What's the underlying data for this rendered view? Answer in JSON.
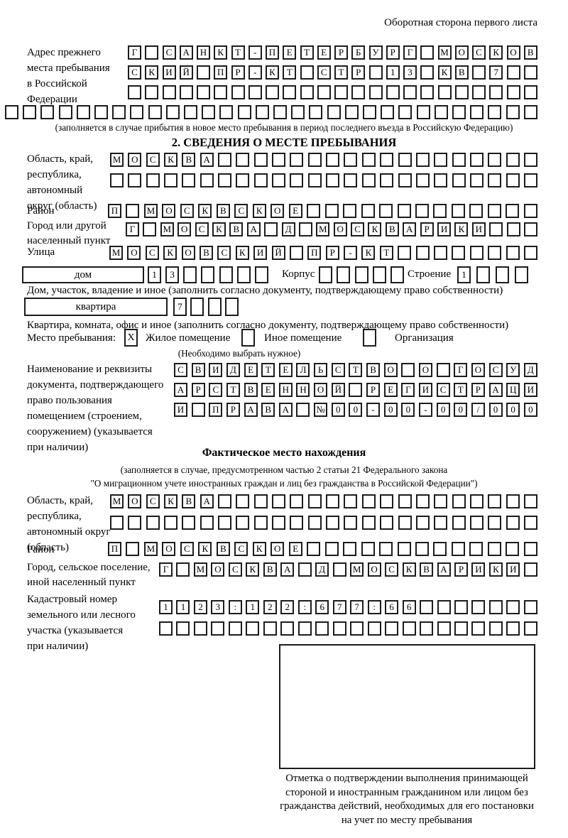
{
  "page": {
    "back_note": "Оборотная сторона первого листа"
  },
  "prev_address": {
    "label_lines": [
      "Адрес прежнего",
      "места пребывания",
      "в Российской",
      "Федерации"
    ],
    "rows": [
      {
        "text": "Г САНКТ-ПЕТЕРБУРГ МОСКОВ",
        "len": 24
      },
      {
        "text": "СКИЙ ПР-КТ СТР 13 КВ 7",
        "len": 24
      },
      {
        "text": "",
        "len": 24
      },
      {
        "text": "",
        "len": 30
      }
    ],
    "note": "(заполняется в случае прибытия в новое место пребывания в период последнего въезда в Российскую Федерацию)"
  },
  "section2": {
    "title": "2. СВЕДЕНИЯ О МЕСТЕ ПРЕБЫВАНИЯ",
    "oblast": {
      "label_lines": [
        "Область, край,",
        "республика,",
        "автономный",
        "округ (область)"
      ],
      "rows": [
        {
          "text": "МОСКВА",
          "len": 24
        },
        {
          "text": "",
          "len": 24
        }
      ]
    },
    "raion": {
      "label": "Район",
      "row": {
        "text": "П МОСКВСКОЕ",
        "len": 24
      }
    },
    "gorod": {
      "label_lines": [
        "Город или другой",
        "населенный пункт"
      ],
      "row": {
        "text": "Г МОСКВА Д МОСКВАРИКИ",
        "len": 24
      }
    },
    "ulitsa": {
      "label": "Улица",
      "row": {
        "text": "МОСКОВСКИЙ ПР-КТ",
        "len": 24
      }
    },
    "dom": {
      "box_label": "дом",
      "cells": {
        "text": "13",
        "len": 7
      },
      "korpus_label": "Корпус",
      "korpus_cells": {
        "text": "",
        "len": 5
      },
      "stroenie_label": "Строение",
      "stroenie_cells": {
        "text": "1",
        "len": 4
      },
      "note": "Дом, участок, владение и иное (заполнить согласно документу, подтверждающему право собственности)"
    },
    "kvartira": {
      "box_label": "квартира",
      "cells": {
        "text": "7",
        "len": 4
      },
      "note": "Квартира, комната, офис и иное (заполнить согласно документу, подтверждающему право собственности)"
    },
    "mesto": {
      "label": "Место пребывания:",
      "options": [
        {
          "label": "Жилое помещение",
          "checked": "X"
        },
        {
          "label": "Иное помещение",
          "checked": ""
        },
        {
          "label": "Организация",
          "checked": ""
        }
      ],
      "note": "(Необходимо выбрать нужное)"
    },
    "doc": {
      "label_lines": [
        "Наименование и реквизиты",
        "документа, подтверждающего",
        "право пользования",
        "помещением (строением,",
        "сооружением) (указывается",
        "при наличии)"
      ],
      "rows": [
        {
          "text": "СВИДЕТЕЛЬСТВО О ГОСУД",
          "len": 21
        },
        {
          "text": "АРСТВЕННОЙ РЕГИСТРАЦИ",
          "len": 21
        },
        {
          "text": "И ПРАВА №00-00-00/000",
          "len": 21
        }
      ]
    }
  },
  "fact": {
    "title": "Фактическое место нахождения",
    "note_lines": [
      "(заполняется в случае, предусмотренном частью 2 статьи 21 Федерального закона",
      "\"О миграционном учете иностранных граждан и лиц без гражданства в Российской Федерации\")"
    ],
    "oblast": {
      "label_lines": [
        "Область, край,",
        "республика,",
        "автономный округ",
        "(область)"
      ],
      "rows": [
        {
          "text": "МОСКВА",
          "len": 24
        },
        {
          "text": "",
          "len": 24
        }
      ]
    },
    "raion": {
      "label": "Район",
      "row": {
        "text": "П МОСКВСКОЕ",
        "len": 24
      }
    },
    "gorod": {
      "label_lines": [
        "Город, сельское поселение,",
        "иной населенный пункт"
      ],
      "row": {
        "text": "Г МОСКВА Д МОСКВАРИКИ",
        "len": 22
      }
    },
    "kadastr": {
      "label_lines": [
        "Кадастровый номер",
        "земельного или лесного",
        "участка (указывается",
        "при наличии)"
      ],
      "rows": [
        {
          "text": "1123:122:677:66",
          "len": 22
        },
        {
          "text": "",
          "len": 22
        }
      ]
    },
    "stamp": {
      "caption_lines": [
        "Отметка о подтверждении выполнения принимающей",
        "стороной и иностранным гражданином или лицом без",
        "гражданства действий, необходимых для его постановки",
        "на учет по месту пребывания"
      ]
    }
  }
}
